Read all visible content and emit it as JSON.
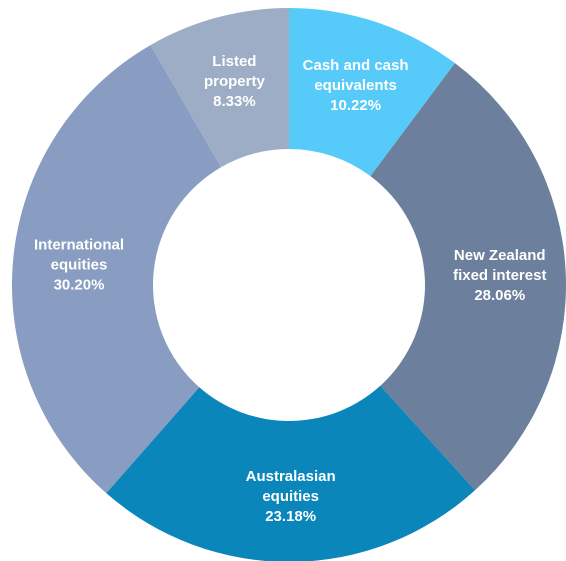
{
  "chart_data": {
    "type": "pie",
    "style": "donut",
    "title": "",
    "slices": [
      {
        "label_lines": [
          "Cash and cash",
          "equivalents"
        ],
        "value_text": "10.22%",
        "value": 10.22,
        "color": "#56CBF9"
      },
      {
        "label_lines": [
          "New Zealand",
          "fixed interest"
        ],
        "value_text": "28.06%",
        "value": 28.06,
        "color": "#6C7F9C"
      },
      {
        "label_lines": [
          "Australasian",
          "equities"
        ],
        "value_text": "23.18%",
        "value": 23.18,
        "color": "#0B86BB"
      },
      {
        "label_lines": [
          "International",
          "equities"
        ],
        "value_text": "30.20%",
        "value": 30.2,
        "color": "#889DC1"
      },
      {
        "label_lines": [
          "Listed",
          "property"
        ],
        "value_text": "8.33%",
        "value": 8.33,
        "color": "#9DADC6"
      }
    ]
  }
}
